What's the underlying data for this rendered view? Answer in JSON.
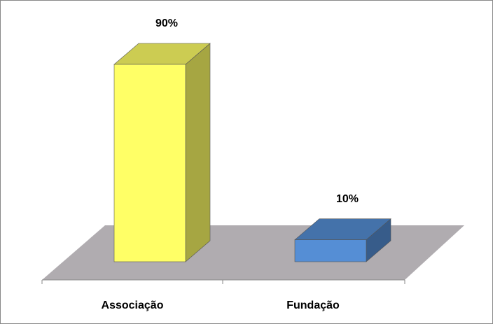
{
  "chart_data": {
    "type": "bar3d",
    "categories": [
      "Associação",
      "Fundação"
    ],
    "values": [
      90,
      10
    ],
    "value_labels": [
      "90%",
      "10%"
    ],
    "colors": [
      "#ffff66",
      "#558ed5"
    ]
  }
}
